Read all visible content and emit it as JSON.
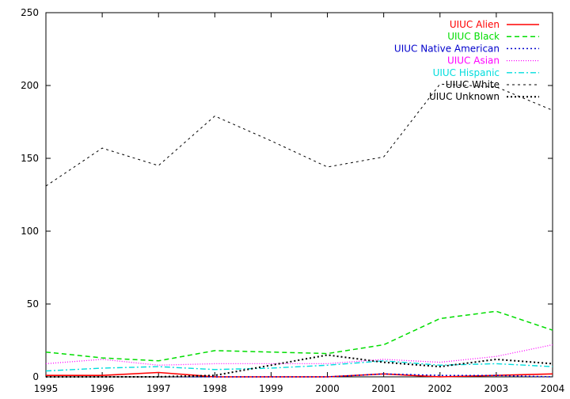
{
  "chart_data": {
    "type": "line",
    "title": "",
    "xlabel": "",
    "ylabel": "",
    "x": [
      1995,
      1996,
      1997,
      1998,
      1999,
      2000,
      2001,
      2002,
      2003,
      2004
    ],
    "xlim": [
      1995,
      2004
    ],
    "ylim": [
      0,
      250
    ],
    "x_ticks": [
      "1995",
      "1996",
      "1997",
      "1998",
      "1999",
      "2000",
      "2001",
      "2002",
      "2003",
      "2004"
    ],
    "y_ticks": [
      "0",
      "50",
      "100",
      "150",
      "200",
      "250"
    ],
    "grid": false,
    "legend_position": "top-right",
    "series": [
      {
        "name": "UIUC Alien",
        "color": "#ff0000",
        "dash": "solid",
        "values": [
          1,
          1,
          3,
          0,
          0,
          0,
          2,
          0,
          1,
          2
        ]
      },
      {
        "name": "UIUC Black",
        "color": "#00dd00",
        "dash": "dashed",
        "values": [
          17,
          13,
          11,
          18,
          17,
          16,
          22,
          40,
          45,
          32
        ]
      },
      {
        "name": "UIUC Native American",
        "color": "#0000cc",
        "dash": "dotted",
        "values": [
          0,
          0,
          0,
          0,
          0,
          0,
          2,
          1,
          1,
          0
        ]
      },
      {
        "name": "UIUC Asian",
        "color": "#ff00ff",
        "dash": "dotted-fine",
        "values": [
          9,
          12,
          8,
          9,
          9,
          9,
          12,
          10,
          14,
          22
        ]
      },
      {
        "name": "UIUC Hispanic",
        "color": "#00dddd",
        "dash": "dashdot",
        "values": [
          4,
          6,
          7,
          5,
          6,
          8,
          11,
          8,
          9,
          7
        ]
      },
      {
        "name": "UIUC White",
        "color": "#000000",
        "dash": "dashed-fine",
        "values": [
          131,
          157,
          145,
          179,
          162,
          144,
          151,
          201,
          199,
          183
        ]
      },
      {
        "name": "UIUC Unknown",
        "color": "#000000",
        "dash": "dotted-bold",
        "values": [
          0,
          0,
          0,
          1,
          8,
          15,
          10,
          7,
          12,
          9
        ]
      }
    ]
  }
}
